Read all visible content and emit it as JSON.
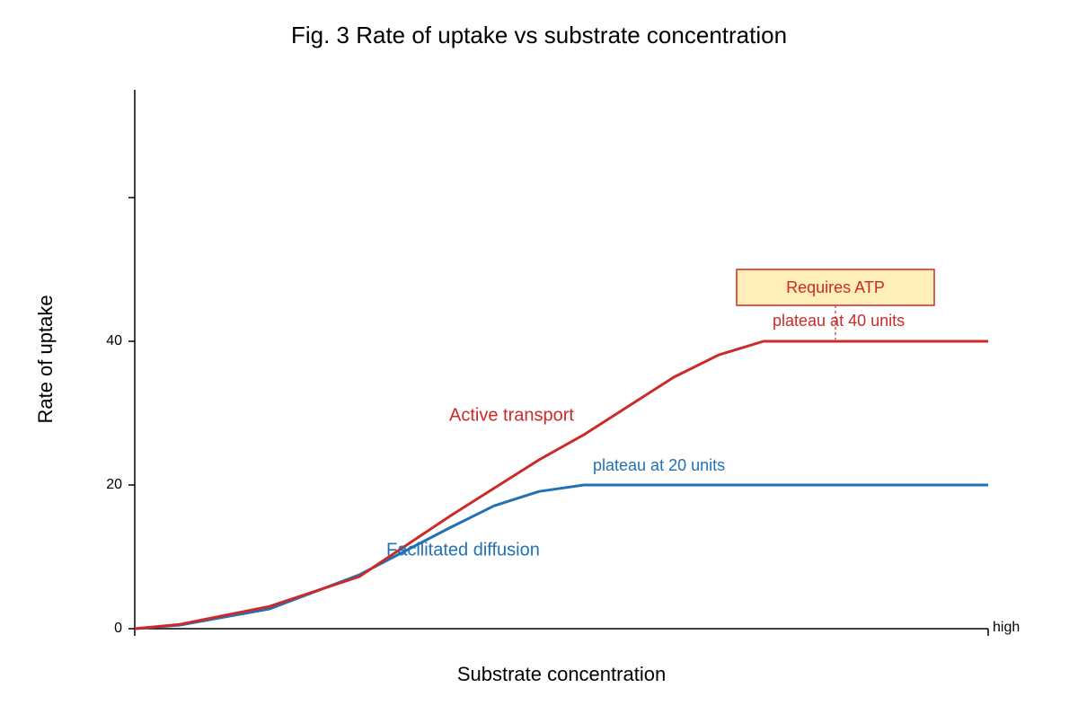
{
  "chart_data": {
    "type": "line",
    "title": "Fig. 3 Rate of uptake vs substrate concentration",
    "xlabel": "Substrate concentration",
    "ylabel": "Rate of uptake",
    "xlim": [
      0,
      95
    ],
    "ylim": [
      0,
      75
    ],
    "xticks": [
      {
        "value": 0,
        "label": null
      },
      {
        "value": 95,
        "label": "high"
      }
    ],
    "yticks": [
      0,
      20,
      40,
      {
        "value": 60,
        "label": null
      }
    ],
    "series": [
      {
        "name": "Facilitated diffusion",
        "color": "#2171b5",
        "x": [
          0,
          5,
          15,
          25,
          35,
          40,
          45,
          50,
          95
        ],
        "values": [
          0,
          0.5,
          2.75,
          7.5,
          14,
          17.1,
          19.1,
          20,
          20
        ]
      },
      {
        "name": "Active transport",
        "color": "#cc2a2a",
        "x": [
          0,
          5,
          15,
          25,
          35,
          45,
          50,
          55,
          60,
          65,
          70,
          95
        ],
        "values": [
          0,
          0.6,
          3.1,
          7.25,
          15.6,
          23.5,
          27,
          31,
          35,
          38.1,
          40,
          40
        ]
      }
    ],
    "annotations": [
      "plateau at 20 units",
      "plateau at 40 units",
      "Requires ATP"
    ]
  }
}
